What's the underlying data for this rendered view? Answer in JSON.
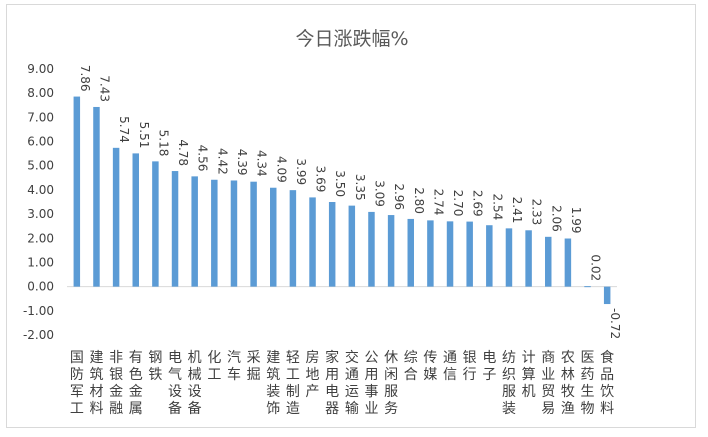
{
  "chart_data": {
    "type": "bar",
    "title": "今日涨跌幅%",
    "xlabel": "",
    "ylabel": "",
    "ylim": [
      -2,
      9
    ],
    "yticks": [
      "9.00",
      "8.00",
      "7.00",
      "6.00",
      "5.00",
      "4.00",
      "3.00",
      "2.00",
      "1.00",
      "0.00",
      "-1.00",
      "-2.00"
    ],
    "ytick_values": [
      9,
      8,
      7,
      6,
      5,
      4,
      3,
      2,
      1,
      0,
      -1,
      -2
    ],
    "grid": false,
    "legend": "none",
    "bar_color": "#5b9bd5",
    "categories": [
      "国防军工",
      "建筑材料",
      "非银金融",
      "有色金属",
      "钢铁",
      "电气设备",
      "机械设备",
      "化工",
      "汽车",
      "采掘",
      "建筑装饰",
      "轻工制造",
      "房地产",
      "家用电器",
      "交通运输",
      "公用事业",
      "休闲服务",
      "综合",
      "传媒",
      "通信",
      "银行",
      "电子",
      "纺织服装",
      "计算机",
      "商业贸易",
      "农林牧渔",
      "医药生物",
      "食品饮料"
    ],
    "values": [
      7.86,
      7.43,
      5.74,
      5.51,
      5.18,
      4.78,
      4.56,
      4.42,
      4.39,
      4.34,
      4.09,
      3.99,
      3.69,
      3.5,
      3.35,
      3.09,
      2.96,
      2.8,
      2.74,
      2.7,
      2.69,
      2.54,
      2.41,
      2.33,
      2.06,
      1.99,
      0.02,
      -0.72
    ],
    "value_labels": [
      "7.86",
      "7.43",
      "5.74",
      "5.51",
      "5.18",
      "4.78",
      "4.56",
      "4.42",
      "4.39",
      "4.34",
      "4.09",
      "3.99",
      "3.69",
      "3.50",
      "3.35",
      "3.09",
      "2.96",
      "2.80",
      "2.74",
      "2.70",
      "2.69",
      "2.54",
      "2.41",
      "2.33",
      "2.06",
      "1.99",
      "0.02",
      "-0.72"
    ]
  }
}
